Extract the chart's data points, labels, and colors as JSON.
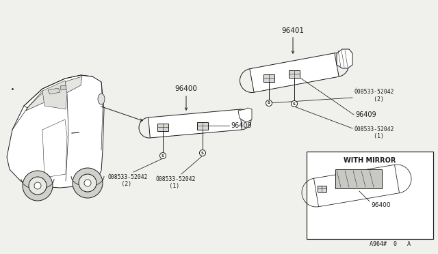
{
  "bg_color": "#f0f0ec",
  "line_color": "#1a1a1a",
  "diagram_code": "A964#  0   A",
  "label_96400": "96400",
  "label_96401": "96401",
  "label_96409": "96409",
  "label_screw_2": "Ó08533-52042\n    (2)",
  "label_screw_1": "Ó08533-52042\n    (1)",
  "with_mirror_label": "WITH MIRROR",
  "with_mirror_96400": "96400"
}
